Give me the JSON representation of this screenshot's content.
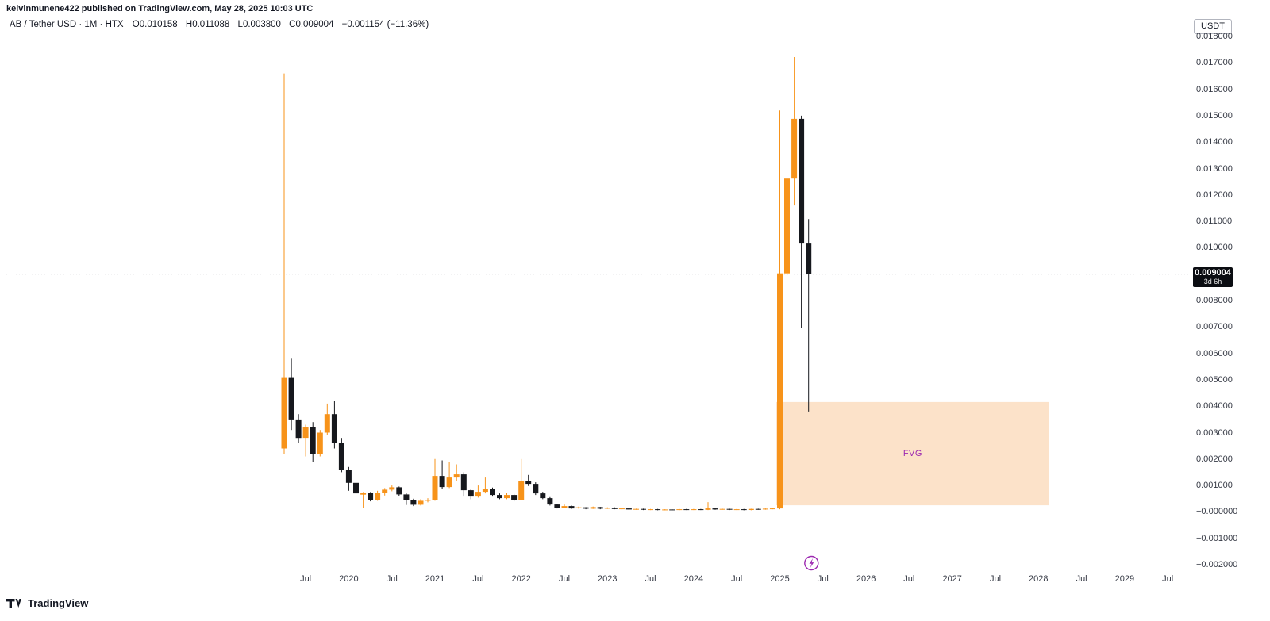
{
  "attribution": "kelvinmunene422 published on TradingView.com, May 28, 2025 10:03 UTC",
  "legend": {
    "title": "AB / Tether USD · 1M · HTX",
    "o_label": "O",
    "o": "0.010158",
    "h_label": "H",
    "h": "0.011088",
    "l_label": "L",
    "l": "0.003800",
    "c_label": "C",
    "c": "0.009004",
    "change": "−0.001154 (−11.36%)"
  },
  "axis": {
    "currency": "USDT"
  },
  "price_label": {
    "value": "0.009004",
    "countdown": "3d 6h"
  },
  "logo": {
    "text": "TradingView"
  },
  "chart_data": {
    "type": "candlestick",
    "title": "AB / Tether USD · 1M · HTX",
    "symbol": "AB / Tether USD",
    "interval": "1M",
    "exchange": "HTX",
    "grid": false,
    "colors": {
      "up": "#f7931a",
      "down": "#16181d"
    },
    "price_line": 0.009004,
    "y_axis": {
      "min": -0.002,
      "max": 0.018,
      "ticks": [
        {
          "label": "0.018000",
          "value": 0.018
        },
        {
          "label": "0.017000",
          "value": 0.017
        },
        {
          "label": "0.016000",
          "value": 0.016
        },
        {
          "label": "0.015000",
          "value": 0.015
        },
        {
          "label": "0.014000",
          "value": 0.014
        },
        {
          "label": "0.013000",
          "value": 0.013
        },
        {
          "label": "0.012000",
          "value": 0.012
        },
        {
          "label": "0.011000",
          "value": 0.011
        },
        {
          "label": "0.010000",
          "value": 0.01
        },
        {
          "label": "0.008000",
          "value": 0.008
        },
        {
          "label": "0.007000",
          "value": 0.007
        },
        {
          "label": "0.006000",
          "value": 0.006
        },
        {
          "label": "0.005000",
          "value": 0.005
        },
        {
          "label": "0.004000",
          "value": 0.004
        },
        {
          "label": "0.003000",
          "value": 0.003
        },
        {
          "label": "0.002000",
          "value": 0.002
        },
        {
          "label": "0.001000",
          "value": 0.001
        },
        {
          "label": "−0.000000",
          "value": 0.0
        },
        {
          "label": "−0.001000",
          "value": -0.001
        },
        {
          "label": "−0.002000",
          "value": -0.002
        }
      ]
    },
    "x_axis": {
      "ticks": [
        {
          "label": "Jul",
          "index": 3
        },
        {
          "label": "2020",
          "index": 9
        },
        {
          "label": "Jul",
          "index": 15
        },
        {
          "label": "2021",
          "index": 21
        },
        {
          "label": "Jul",
          "index": 27
        },
        {
          "label": "2022",
          "index": 33
        },
        {
          "label": "Jul",
          "index": 39
        },
        {
          "label": "2023",
          "index": 45
        },
        {
          "label": "Jul",
          "index": 51
        },
        {
          "label": "2024",
          "index": 57
        },
        {
          "label": "Jul",
          "index": 63
        },
        {
          "label": "2025",
          "index": 69
        },
        {
          "label": "Jul",
          "index": 75
        },
        {
          "label": "2026",
          "index": 81
        },
        {
          "label": "Jul",
          "index": 87
        },
        {
          "label": "2027",
          "index": 93
        },
        {
          "label": "Jul",
          "index": 99
        },
        {
          "label": "2028",
          "index": 105
        },
        {
          "label": "Jul",
          "index": 111
        },
        {
          "label": "2029",
          "index": 117
        },
        {
          "label": "Jul",
          "index": 123
        }
      ]
    },
    "fvg": {
      "label": "FVG",
      "from": "2025-01",
      "to": "2028-02",
      "start_index": 69,
      "end_index": 106,
      "top_price": 0.00416,
      "bottom_price": 0.00025,
      "fill": "rgba(244,150,60,0.28)",
      "label_color": "#9c27b0"
    },
    "marker": {
      "type": "lightning",
      "index": 73.4,
      "color": "#9c27b0"
    },
    "candles": [
      {
        "t": "2019-04",
        "o": 0.0024,
        "h": 0.0166,
        "l": 0.0022,
        "c": 0.0051
      },
      {
        "t": "2019-05",
        "o": 0.0051,
        "h": 0.0058,
        "l": 0.0031,
        "c": 0.0035
      },
      {
        "t": "2019-06",
        "o": 0.0035,
        "h": 0.0037,
        "l": 0.0026,
        "c": 0.0028
      },
      {
        "t": "2019-07",
        "o": 0.0028,
        "h": 0.0033,
        "l": 0.0021,
        "c": 0.0032
      },
      {
        "t": "2019-08",
        "o": 0.0032,
        "h": 0.0034,
        "l": 0.0019,
        "c": 0.0022
      },
      {
        "t": "2019-09",
        "o": 0.0022,
        "h": 0.0031,
        "l": 0.0021,
        "c": 0.003
      },
      {
        "t": "2019-10",
        "o": 0.003,
        "h": 0.0041,
        "l": 0.0029,
        "c": 0.0037
      },
      {
        "t": "2019-11",
        "o": 0.0037,
        "h": 0.0042,
        "l": 0.0024,
        "c": 0.0026
      },
      {
        "t": "2019-12",
        "o": 0.0026,
        "h": 0.0028,
        "l": 0.0015,
        "c": 0.0016
      },
      {
        "t": "2020-01",
        "o": 0.0016,
        "h": 0.0017,
        "l": 0.0008,
        "c": 0.0011
      },
      {
        "t": "2020-02",
        "o": 0.0011,
        "h": 0.0012,
        "l": 0.0006,
        "c": 0.0007
      },
      {
        "t": "2020-03",
        "o": 0.00065,
        "h": 0.00075,
        "l": 0.00016,
        "c": 0.00072
      },
      {
        "t": "2020-04",
        "o": 0.00072,
        "h": 0.00075,
        "l": 0.0004,
        "c": 0.00046
      },
      {
        "t": "2020-05",
        "o": 0.00046,
        "h": 0.0008,
        "l": 0.00042,
        "c": 0.00072
      },
      {
        "t": "2020-06",
        "o": 0.00072,
        "h": 0.0009,
        "l": 0.00062,
        "c": 0.00084
      },
      {
        "t": "2020-07",
        "o": 0.00084,
        "h": 0.001,
        "l": 0.00078,
        "c": 0.00093
      },
      {
        "t": "2020-08",
        "o": 0.00093,
        "h": 0.00096,
        "l": 0.0006,
        "c": 0.00066
      },
      {
        "t": "2020-09",
        "o": 0.00066,
        "h": 0.0007,
        "l": 0.00026,
        "c": 0.00045
      },
      {
        "t": "2020-10",
        "o": 0.00045,
        "h": 0.0005,
        "l": 0.00022,
        "c": 0.00027
      },
      {
        "t": "2020-11",
        "o": 0.00027,
        "h": 0.00048,
        "l": 0.00024,
        "c": 0.00042
      },
      {
        "t": "2020-12",
        "o": 0.00042,
        "h": 0.00052,
        "l": 0.00036,
        "c": 0.00046
      },
      {
        "t": "2021-01",
        "o": 0.00046,
        "h": 0.002,
        "l": 0.00042,
        "c": 0.00136
      },
      {
        "t": "2021-02",
        "o": 0.00136,
        "h": 0.00195,
        "l": 0.00088,
        "c": 0.00094
      },
      {
        "t": "2021-03",
        "o": 0.00094,
        "h": 0.0019,
        "l": 0.0009,
        "c": 0.0013
      },
      {
        "t": "2021-04",
        "o": 0.0013,
        "h": 0.0018,
        "l": 0.00118,
        "c": 0.00142
      },
      {
        "t": "2021-05",
        "o": 0.00142,
        "h": 0.0015,
        "l": 0.00058,
        "c": 0.00082
      },
      {
        "t": "2021-06",
        "o": 0.00082,
        "h": 0.00088,
        "l": 0.00048,
        "c": 0.00058
      },
      {
        "t": "2021-07",
        "o": 0.00058,
        "h": 0.001,
        "l": 0.00054,
        "c": 0.00076
      },
      {
        "t": "2021-08",
        "o": 0.00076,
        "h": 0.0013,
        "l": 0.0007,
        "c": 0.00088
      },
      {
        "t": "2021-09",
        "o": 0.00088,
        "h": 0.00092,
        "l": 0.00058,
        "c": 0.00064
      },
      {
        "t": "2021-10",
        "o": 0.00064,
        "h": 0.0007,
        "l": 0.00048,
        "c": 0.00052
      },
      {
        "t": "2021-11",
        "o": 0.00052,
        "h": 0.00072,
        "l": 0.00048,
        "c": 0.00064
      },
      {
        "t": "2021-12",
        "o": 0.00064,
        "h": 0.00068,
        "l": 0.0004,
        "c": 0.00046
      },
      {
        "t": "2022-01",
        "o": 0.00046,
        "h": 0.002,
        "l": 0.00044,
        "c": 0.00118
      },
      {
        "t": "2022-02",
        "o": 0.00118,
        "h": 0.0014,
        "l": 0.00098,
        "c": 0.00106
      },
      {
        "t": "2022-03",
        "o": 0.00106,
        "h": 0.00112,
        "l": 0.00064,
        "c": 0.0007
      },
      {
        "t": "2022-04",
        "o": 0.0007,
        "h": 0.00076,
        "l": 0.00048,
        "c": 0.00052
      },
      {
        "t": "2022-05",
        "o": 0.00052,
        "h": 0.00056,
        "l": 0.00024,
        "c": 0.00028
      },
      {
        "t": "2022-06",
        "o": 0.00028,
        "h": 0.0003,
        "l": 0.00013,
        "c": 0.00016
      },
      {
        "t": "2022-07",
        "o": 0.00016,
        "h": 0.00028,
        "l": 0.00014,
        "c": 0.00022
      },
      {
        "t": "2022-08",
        "o": 0.00022,
        "h": 0.00024,
        "l": 0.00011,
        "c": 0.00013
      },
      {
        "t": "2022-09",
        "o": 0.00013,
        "h": 0.0002,
        "l": 0.00012,
        "c": 0.00017
      },
      {
        "t": "2022-10",
        "o": 0.00017,
        "h": 0.00018,
        "l": 0.0001,
        "c": 0.00012
      },
      {
        "t": "2022-11",
        "o": 0.00012,
        "h": 0.0002,
        "l": 0.00011,
        "c": 0.00018
      },
      {
        "t": "2022-12",
        "o": 0.00018,
        "h": 0.00019,
        "l": 0.0001,
        "c": 0.00012
      },
      {
        "t": "2023-01",
        "o": 0.00012,
        "h": 0.00017,
        "l": 0.00011,
        "c": 0.00016
      },
      {
        "t": "2023-02",
        "o": 0.00016,
        "h": 0.00017,
        "l": 0.0001,
        "c": 0.00011
      },
      {
        "t": "2023-03",
        "o": 0.00011,
        "h": 0.00014,
        "l": 9e-05,
        "c": 0.00013
      },
      {
        "t": "2023-04",
        "o": 0.00013,
        "h": 0.00014,
        "l": 8e-05,
        "c": 9e-05
      },
      {
        "t": "2023-05",
        "o": 9e-05,
        "h": 0.00012,
        "l": 8e-05,
        "c": 0.00011
      },
      {
        "t": "2023-06",
        "o": 0.00011,
        "h": 0.00012,
        "l": 7e-05,
        "c": 8e-05
      },
      {
        "t": "2023-07",
        "o": 8e-05,
        "h": 0.00011,
        "l": 7e-05,
        "c": 0.0001
      },
      {
        "t": "2023-08",
        "o": 0.0001,
        "h": 0.00011,
        "l": 6e-05,
        "c": 7e-05
      },
      {
        "t": "2023-09",
        "o": 7e-05,
        "h": 0.0001,
        "l": 6e-05,
        "c": 9e-05
      },
      {
        "t": "2023-10",
        "o": 9e-05,
        "h": 0.0001,
        "l": 6e-05,
        "c": 7e-05
      },
      {
        "t": "2023-11",
        "o": 7e-05,
        "h": 0.00011,
        "l": 6e-05,
        "c": 0.0001
      },
      {
        "t": "2023-12",
        "o": 0.0001,
        "h": 0.00011,
        "l": 7e-05,
        "c": 8e-05
      },
      {
        "t": "2024-01",
        "o": 8e-05,
        "h": 0.00011,
        "l": 7e-05,
        "c": 0.0001
      },
      {
        "t": "2024-02",
        "o": 0.0001,
        "h": 0.00011,
        "l": 7e-05,
        "c": 8e-05
      },
      {
        "t": "2024-03",
        "o": 8e-05,
        "h": 0.00037,
        "l": 7e-05,
        "c": 0.00013
      },
      {
        "t": "2024-04",
        "o": 0.00013,
        "h": 0.00014,
        "l": 8e-05,
        "c": 9e-05
      },
      {
        "t": "2024-05",
        "o": 9e-05,
        "h": 0.00012,
        "l": 8e-05,
        "c": 0.00011
      },
      {
        "t": "2024-06",
        "o": 0.00011,
        "h": 0.00012,
        "l": 7e-05,
        "c": 8e-05
      },
      {
        "t": "2024-07",
        "o": 8e-05,
        "h": 0.00011,
        "l": 7e-05,
        "c": 0.0001
      },
      {
        "t": "2024-08",
        "o": 0.0001,
        "h": 0.00011,
        "l": 6e-05,
        "c": 7e-05
      },
      {
        "t": "2024-09",
        "o": 7e-05,
        "h": 0.00012,
        "l": 6e-05,
        "c": 0.00011
      },
      {
        "t": "2024-10",
        "o": 0.00011,
        "h": 0.00012,
        "l": 8e-05,
        "c": 9e-05
      },
      {
        "t": "2024-11",
        "o": 9e-05,
        "h": 0.00013,
        "l": 8e-05,
        "c": 0.00012
      },
      {
        "t": "2024-12",
        "o": 0.00012,
        "h": 0.00014,
        "l": 0.0001,
        "c": 0.00013
      },
      {
        "t": "2025-01",
        "o": 0.00013,
        "h": 0.0152,
        "l": 0.0001,
        "c": 0.00903
      },
      {
        "t": "2025-02",
        "o": 0.00903,
        "h": 0.0159,
        "l": 0.0045,
        "c": 0.01262
      },
      {
        "t": "2025-03",
        "o": 0.01262,
        "h": 0.01722,
        "l": 0.0116,
        "c": 0.01488
      },
      {
        "t": "2025-04",
        "o": 0.01488,
        "h": 0.015,
        "l": 0.00698,
        "c": 0.01016
      },
      {
        "t": "2025-05",
        "o": 0.010158,
        "h": 0.011088,
        "l": 0.0038,
        "c": 0.009004
      }
    ]
  }
}
